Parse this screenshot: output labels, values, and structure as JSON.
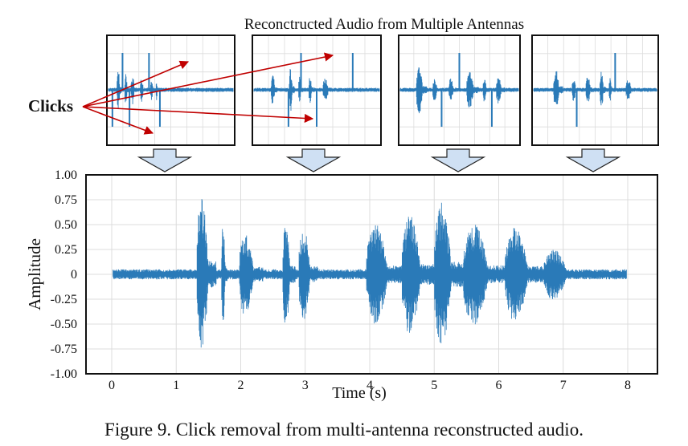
{
  "figure": {
    "top_title": "Reconctructed Audio from Multiple Antennas",
    "clicks_label": "Clicks",
    "caption": "Figure 9. Click removal from multi-antenna reconstructed audio."
  },
  "colors": {
    "waveform": "#2a7ab8",
    "arrow": "#c00000",
    "clicks_text": "#c00000",
    "down_arrow_fill": "#cfe0f3",
    "down_arrow_stroke": "#222222",
    "grid": "#dcdcdc"
  },
  "chart_data": [
    {
      "type": "line",
      "role": "thumbnail-1",
      "xlim": [
        0,
        8
      ],
      "ylim": [
        -1,
        1
      ],
      "grid": true,
      "has_clicks": true,
      "click_times_s": [
        0.25,
        0.9,
        1.35,
        2.6,
        3.3
      ],
      "segments": [
        {
          "start": 0.55,
          "end": 0.85,
          "amp": 0.7
        },
        {
          "start": 1.05,
          "end": 1.3,
          "amp": 0.5
        },
        {
          "start": 1.45,
          "end": 1.8,
          "amp": 0.45
        },
        {
          "start": 2.05,
          "end": 2.35,
          "amp": 0.35
        },
        {
          "start": 2.7,
          "end": 2.95,
          "amp": 0.3
        },
        {
          "start": 3.05,
          "end": 3.2,
          "amp": 0.3
        }
      ]
    },
    {
      "type": "line",
      "role": "thumbnail-2",
      "xlim": [
        0,
        8
      ],
      "ylim": [
        -1,
        1
      ],
      "grid": true,
      "has_clicks": true,
      "click_times_s": [
        2.2,
        3.0,
        4.0,
        6.3
      ],
      "segments": [
        {
          "start": 1.1,
          "end": 1.5,
          "amp": 0.45
        },
        {
          "start": 2.25,
          "end": 2.6,
          "amp": 0.65
        },
        {
          "start": 2.85,
          "end": 3.1,
          "amp": 0.4
        },
        {
          "start": 3.5,
          "end": 3.8,
          "amp": 0.4
        },
        {
          "start": 4.4,
          "end": 5.0,
          "amp": 0.35
        }
      ]
    },
    {
      "type": "line",
      "role": "thumbnail-3",
      "xlim": [
        0,
        8
      ],
      "ylim": [
        -1,
        1
      ],
      "grid": true,
      "has_clicks": true,
      "click_times_s": [
        2.8,
        4.0,
        6.2
      ],
      "segments": [
        {
          "start": 1.1,
          "end": 1.8,
          "amp": 0.7
        },
        {
          "start": 2.2,
          "end": 2.7,
          "amp": 0.35
        },
        {
          "start": 3.3,
          "end": 3.8,
          "amp": 0.35
        },
        {
          "start": 4.5,
          "end": 5.3,
          "amp": 0.55
        },
        {
          "start": 5.6,
          "end": 6.0,
          "amp": 0.35
        },
        {
          "start": 6.5,
          "end": 7.1,
          "amp": 0.4
        }
      ]
    },
    {
      "type": "line",
      "role": "thumbnail-4",
      "xlim": [
        0,
        8
      ],
      "ylim": [
        -1,
        1
      ],
      "grid": true,
      "has_clicks": true,
      "click_times_s": [
        2.8,
        5.3
      ],
      "segments": [
        {
          "start": 1.3,
          "end": 1.9,
          "amp": 0.6
        },
        {
          "start": 2.5,
          "end": 2.9,
          "amp": 0.35
        },
        {
          "start": 3.4,
          "end": 3.9,
          "amp": 0.4
        },
        {
          "start": 4.3,
          "end": 4.7,
          "amp": 0.55
        },
        {
          "start": 4.9,
          "end": 5.2,
          "amp": 0.35
        },
        {
          "start": 6.0,
          "end": 6.6,
          "amp": 0.3
        }
      ]
    },
    {
      "type": "line",
      "role": "main",
      "xlabel": "Time (s)",
      "ylabel": "Amplitude",
      "xlim": [
        0,
        8
      ],
      "ylim": [
        -1.0,
        1.0
      ],
      "xticks": [
        0,
        1,
        2,
        3,
        4,
        5,
        6,
        7,
        8
      ],
      "xtick_labels": [
        "0",
        "1",
        "2",
        "3",
        "4",
        "5",
        "6",
        "7",
        "8"
      ],
      "yticks": [
        1.0,
        0.75,
        0.5,
        0.25,
        0,
        -0.25,
        -0.5,
        -0.75,
        -1.0
      ],
      "ytick_labels": [
        "1.00",
        "0.75",
        "0.50",
        "0.25",
        "0",
        "-0.25",
        "-0.50",
        "-0.75",
        "-1.00"
      ],
      "grid": true,
      "noise_floor": 0.05,
      "segments": [
        {
          "start": 1.32,
          "end": 1.62,
          "amp": 0.9
        },
        {
          "start": 1.7,
          "end": 1.8,
          "amp": 0.6
        },
        {
          "start": 1.98,
          "end": 2.35,
          "amp": 0.5
        },
        {
          "start": 2.65,
          "end": 2.85,
          "amp": 0.6
        },
        {
          "start": 2.9,
          "end": 3.2,
          "amp": 0.55
        },
        {
          "start": 3.95,
          "end": 4.5,
          "amp": 0.6
        },
        {
          "start": 4.5,
          "end": 5.0,
          "amp": 0.7
        },
        {
          "start": 5.0,
          "end": 5.45,
          "amp": 0.85
        },
        {
          "start": 5.45,
          "end": 6.1,
          "amp": 0.6
        },
        {
          "start": 6.1,
          "end": 6.7,
          "amp": 0.55
        },
        {
          "start": 6.7,
          "end": 7.3,
          "amp": 0.3
        }
      ]
    }
  ]
}
